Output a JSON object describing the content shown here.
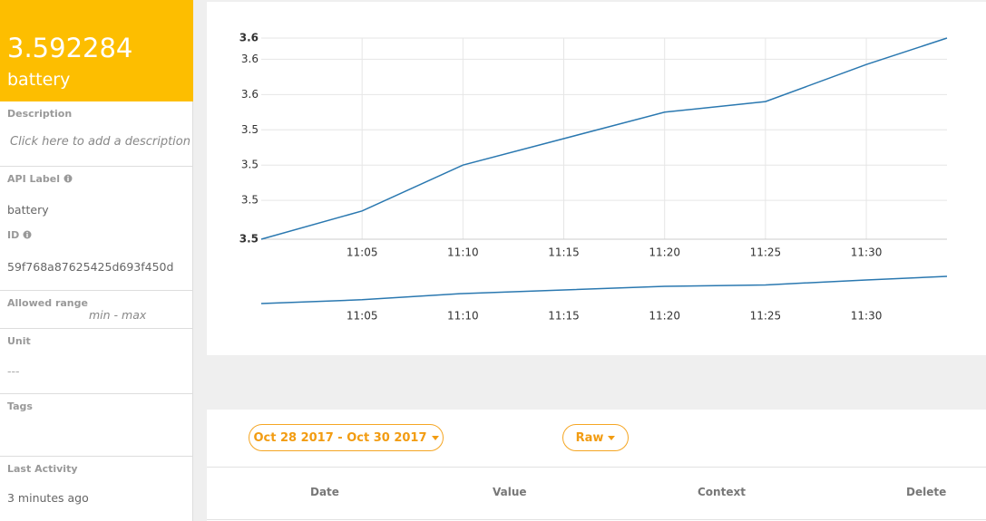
{
  "sidebar": {
    "value": "3.592284",
    "name": "battery",
    "description": {
      "label": "Description",
      "placeholder": "Click here to add a description"
    },
    "api_label": {
      "label": "API Label",
      "value": "battery"
    },
    "id": {
      "label": "ID",
      "value": "59f768a87625425d693f450d"
    },
    "allowed_range": {
      "label": "Allowed range",
      "value": "min - max"
    },
    "unit": {
      "label": "Unit",
      "value": "---"
    },
    "tags": {
      "label": "Tags"
    },
    "last_activity": {
      "label": "Last Activity",
      "value": "3 minutes ago"
    }
  },
  "chart": {
    "type": "line",
    "x": [
      "11:00",
      "11:05",
      "11:10",
      "11:20",
      "11:25",
      "11:30",
      "11:34"
    ],
    "series": [
      {
        "color": "#2a78b0",
        "values": [
          3.5428,
          3.5444,
          3.547,
          3.55,
          3.5506,
          3.5527,
          3.5542
        ]
      }
    ],
    "xlim": [
      "11:00",
      "11:34"
    ],
    "xticks": [
      "11:05",
      "11:10",
      "11:15",
      "11:20",
      "11:25",
      "11:30"
    ],
    "ylim": [
      3.5428,
      3.5542
    ],
    "yticks": [
      {
        "value": 3.5428,
        "label": "3.5"
      },
      {
        "value": 3.545,
        "label": "3.5"
      },
      {
        "value": 3.547,
        "label": "3.5"
      },
      {
        "value": 3.549,
        "label": "3.5"
      },
      {
        "value": 3.551,
        "label": "3.6"
      },
      {
        "value": 3.553,
        "label": "3.6"
      },
      {
        "value": 3.5542,
        "label": "3.6"
      }
    ],
    "grid": true
  },
  "table": {
    "date_range": "Oct 28 2017 - Oct 30 2017",
    "resolution": "Raw",
    "columns": [
      "Date",
      "Value",
      "Context",
      "Delete"
    ]
  }
}
